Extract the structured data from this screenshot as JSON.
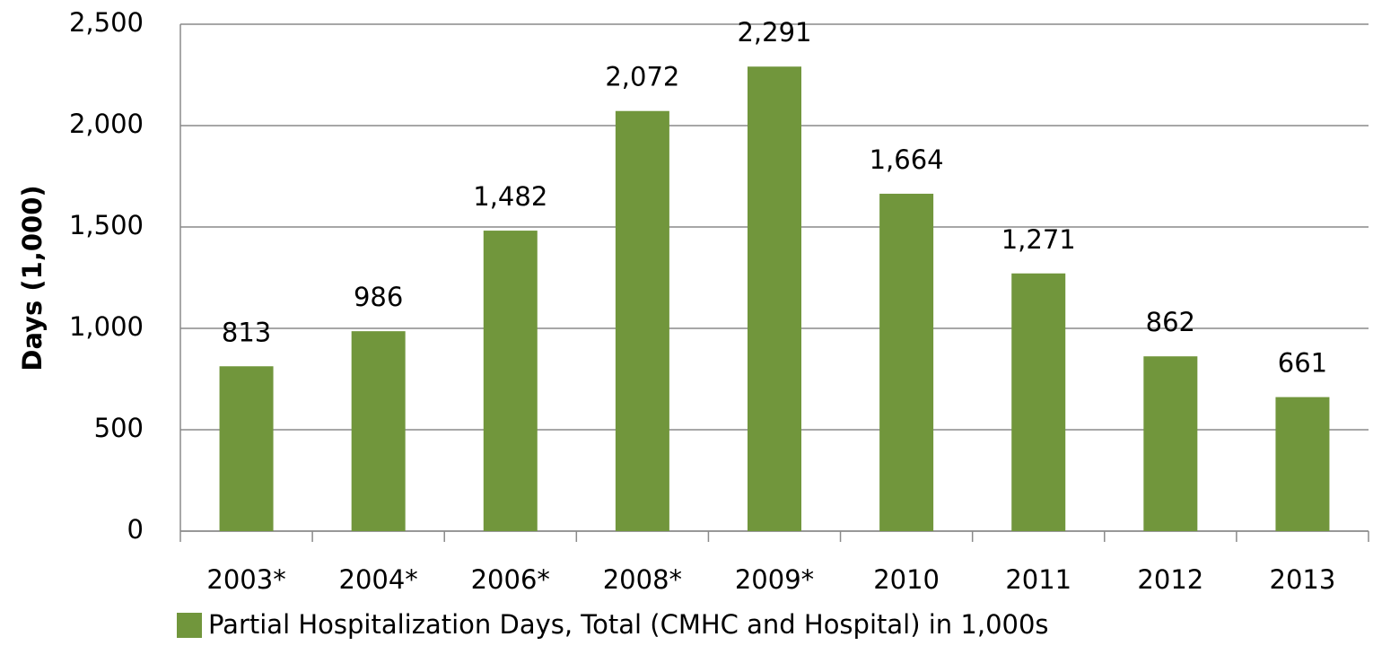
{
  "chart_data": {
    "type": "bar",
    "categories": [
      "2003*",
      "2004*",
      "2006*",
      "2008*",
      "2009*",
      "2010",
      "2011",
      "2012",
      "2013"
    ],
    "values": [
      813,
      986,
      1482,
      2072,
      2291,
      1664,
      1271,
      862,
      661
    ],
    "value_labels": [
      "813",
      "986",
      "1,482",
      "2,072",
      "2,291",
      "1,664",
      "1,271",
      "862",
      "661"
    ],
    "series_name": "Partial Hospitalization Days, Total (CMHC and Hospital) in 1,000s",
    "ylabel": "Days (1,000)",
    "color": "#71963c",
    "ylim": [
      0,
      2500
    ],
    "yticks": [
      0,
      500,
      {
        "value": 1000,
        "label": "1,000"
      },
      {
        "value": 1500,
        "label": "1,500"
      },
      {
        "value": 2000,
        "label": "2,000"
      },
      {
        "value": 2500,
        "label": "2,500"
      }
    ],
    "grid": true,
    "legend": "bottom"
  }
}
